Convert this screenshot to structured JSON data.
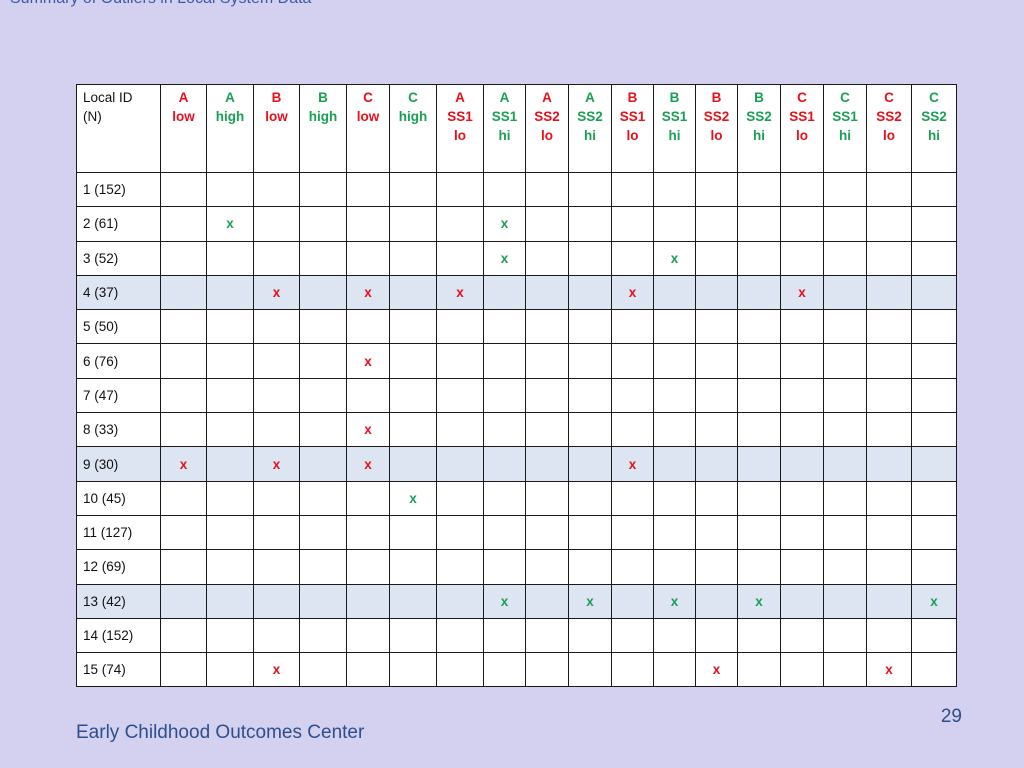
{
  "slide": {
    "title": "Summary of Outliers in Local System Data",
    "footer_org": "Early Childhood Outcomes Center",
    "page_number": "29"
  },
  "colors": {
    "low": "#e8101a",
    "high": "#1aa053",
    "background": "#d4d0f0",
    "shaded_row": "#dde4f2"
  },
  "table": {
    "id_header": [
      "Local ID",
      "(N)"
    ],
    "columns": [
      {
        "lines": [
          "A",
          "low"
        ],
        "kind": "low"
      },
      {
        "lines": [
          "A",
          "high"
        ],
        "kind": "high"
      },
      {
        "lines": [
          "B",
          "low"
        ],
        "kind": "low"
      },
      {
        "lines": [
          "B",
          "high"
        ],
        "kind": "high"
      },
      {
        "lines": [
          "C",
          "low"
        ],
        "kind": "low"
      },
      {
        "lines": [
          "C",
          "high"
        ],
        "kind": "high"
      },
      {
        "lines": [
          "A",
          "SS1",
          "lo"
        ],
        "kind": "low"
      },
      {
        "lines": [
          "A",
          "SS1",
          "hi"
        ],
        "kind": "high"
      },
      {
        "lines": [
          "A",
          "SS2",
          "lo"
        ],
        "kind": "low"
      },
      {
        "lines": [
          "A",
          "SS2",
          "hi"
        ],
        "kind": "high"
      },
      {
        "lines": [
          "B",
          "SS1",
          "lo"
        ],
        "kind": "low"
      },
      {
        "lines": [
          "B",
          "SS1",
          "hi"
        ],
        "kind": "high"
      },
      {
        "lines": [
          "B",
          "SS2",
          "lo"
        ],
        "kind": "low"
      },
      {
        "lines": [
          "B",
          "SS2",
          "hi"
        ],
        "kind": "high"
      },
      {
        "lines": [
          "C",
          "SS1",
          "lo"
        ],
        "kind": "low"
      },
      {
        "lines": [
          "C",
          "SS1",
          "hi"
        ],
        "kind": "high"
      },
      {
        "lines": [
          "C",
          "SS2",
          "lo"
        ],
        "kind": "low"
      },
      {
        "lines": [
          "C",
          "SS2",
          "hi"
        ],
        "kind": "high"
      }
    ],
    "rows": [
      {
        "id": "1 (152)",
        "shaded": false,
        "marks": [
          "",
          "",
          "",
          "",
          "",
          "",
          "",
          "",
          "",
          "",
          "",
          "",
          "",
          "",
          "",
          "",
          "",
          ""
        ]
      },
      {
        "id": "2 (61)",
        "shaded": false,
        "marks": [
          "",
          "x",
          "",
          "",
          "",
          "",
          "",
          "x",
          "",
          "",
          "",
          "",
          "",
          "",
          "",
          "",
          "",
          ""
        ]
      },
      {
        "id": "3 (52)",
        "shaded": false,
        "marks": [
          "",
          "",
          "",
          "",
          "",
          "",
          "",
          "x",
          "",
          "",
          "",
          "x",
          "",
          "",
          "",
          "",
          "",
          ""
        ]
      },
      {
        "id": "4 (37)",
        "shaded": true,
        "marks": [
          "",
          "",
          "x",
          "",
          "x",
          "",
          "x",
          "",
          "",
          "",
          "x",
          "",
          "",
          "",
          "x",
          "",
          "",
          ""
        ]
      },
      {
        "id": "5 (50)",
        "shaded": false,
        "marks": [
          "",
          "",
          "",
          "",
          "",
          "",
          "",
          "",
          "",
          "",
          "",
          "",
          "",
          "",
          "",
          "",
          "",
          ""
        ]
      },
      {
        "id": "6 (76)",
        "shaded": false,
        "marks": [
          "",
          "",
          "",
          "",
          "x",
          "",
          "",
          "",
          "",
          "",
          "",
          "",
          "",
          "",
          "",
          "",
          "",
          ""
        ]
      },
      {
        "id": "7 (47)",
        "shaded": false,
        "marks": [
          "",
          "",
          "",
          "",
          "",
          "",
          "",
          "",
          "",
          "",
          "",
          "",
          "",
          "",
          "",
          "",
          "",
          ""
        ]
      },
      {
        "id": "8 (33)",
        "shaded": false,
        "marks": [
          "",
          "",
          "",
          "",
          "x",
          "",
          "",
          "",
          "",
          "",
          "",
          "",
          "",
          "",
          "",
          "",
          "",
          ""
        ]
      },
      {
        "id": "9 (30)",
        "shaded": true,
        "marks": [
          "x",
          "",
          "x",
          "",
          "x",
          "",
          "",
          "",
          "",
          "",
          "x",
          "",
          "",
          "",
          "",
          "",
          "",
          ""
        ]
      },
      {
        "id": "10 (45)",
        "shaded": false,
        "marks": [
          "",
          "",
          "",
          "",
          "",
          "x",
          "",
          "",
          "",
          "",
          "",
          "",
          "",
          "",
          "",
          "",
          "",
          ""
        ]
      },
      {
        "id": "11 (127)",
        "shaded": false,
        "marks": [
          "",
          "",
          "",
          "",
          "",
          "",
          "",
          "",
          "",
          "",
          "",
          "",
          "",
          "",
          "",
          "",
          "",
          ""
        ]
      },
      {
        "id": "12 (69)",
        "shaded": false,
        "marks": [
          "",
          "",
          "",
          "",
          "",
          "",
          "",
          "",
          "",
          "",
          "",
          "",
          "",
          "",
          "",
          "",
          "",
          ""
        ]
      },
      {
        "id": "13 (42)",
        "shaded": true,
        "marks": [
          "",
          "",
          "",
          "",
          "",
          "",
          "",
          "x",
          "",
          "x",
          "",
          "x",
          "",
          "x",
          "",
          "",
          "",
          "x"
        ]
      },
      {
        "id": "14 (152)",
        "shaded": false,
        "marks": [
          "",
          "",
          "",
          "",
          "",
          "",
          "",
          "",
          "",
          "",
          "",
          "",
          "",
          "",
          "",
          "",
          "",
          ""
        ]
      },
      {
        "id": "15 (74)",
        "shaded": false,
        "marks": [
          "",
          "",
          "x",
          "",
          "",
          "",
          "",
          "",
          "",
          "",
          "",
          "",
          "x",
          "",
          "",
          "",
          "x",
          ""
        ]
      }
    ]
  }
}
